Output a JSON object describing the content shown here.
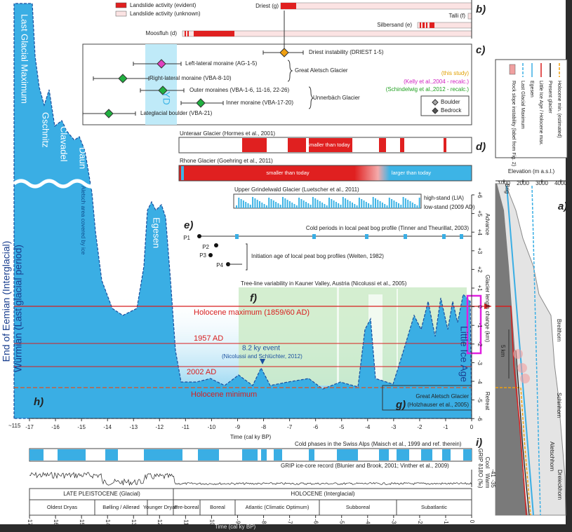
{
  "landslides": {
    "panel": "b)",
    "legend": [
      "Landslide activity (evident)",
      "Landslide activity (unknown)"
    ],
    "sites": [
      "Driest (g)",
      "Talli (f)",
      "Silbersand (e)",
      "Moosfluh (d)"
    ]
  },
  "dating": {
    "panel": "c)",
    "yd": "YD",
    "samples": [
      "Left-lateral moraine (AG-1-5)",
      "Right-lateral moraine (VBA-8-10)",
      "Outer moraines (VBA-1-6, 11-16, 22-26)",
      "Inner moraine (VBA-17-20)",
      "Lateglacial boulder (VBA-21)",
      "Driest instability (DRIEST 1-5)"
    ],
    "glaciers": [
      "Great Aletsch Glacier",
      "Unnerbäch Glacier"
    ],
    "sources": [
      "(this study)",
      "(Kelly et al.,2004 - recalc.)",
      "(Schindelwig et al.,2012 - recalc.)"
    ],
    "symbols": [
      "Boulder",
      "Bedrock"
    ]
  },
  "records": {
    "panel": "d)",
    "unteraar": {
      "title": "Unteraar Glacier (Hormes et al., 2001)",
      "note": "smaller than today"
    },
    "rhone": {
      "title": "Rhone Glacier (Goehring et al., 2011)",
      "smaller": "smaller than today",
      "larger": "larger than today"
    },
    "grindelwald": {
      "title": "Upper Grindelwald Glacier (Luetscher et al., 2011)",
      "high": "high-stand (LIA)",
      "low": "low-stand (2009 AD)"
    }
  },
  "peat": {
    "panel": "e)",
    "cold": "Cold periods in local peat bog profile (Tinner and Theurillat, 2003)",
    "profiles": [
      "P1",
      "P2",
      "P3",
      "P4"
    ],
    "initiation": "Initiation age of local peat bog profiles (Welten, 1982)"
  },
  "treeline": {
    "panel": "f)",
    "title": "Tree-line variability in Kauner Valley, Austria (Nicolussi et al., 2005)"
  },
  "glacier": {
    "panel": "g)",
    "title": "Great Aletsch Glacier",
    "source": "(Holzhauser et al., 2005)",
    "levels": [
      "Holocene maximum (1859/60 AD)",
      "1957 AD",
      "2002 AD",
      "Holocene minimum"
    ],
    "event": "8.2 ky event",
    "event_source": "(Nicolussi and Schlüchter, 2012)",
    "lia": "Little Ice Age",
    "axis_title": "Glacier length change (km)",
    "advance": "Advance",
    "retreat": "Retreat",
    "ticks": [
      "+6",
      "+5",
      "+4",
      "+3",
      "+2",
      "+1",
      "0",
      "-1",
      "-2",
      "-3",
      "-4",
      "-5",
      "-6"
    ]
  },
  "lateglacial": {
    "panel": "h)",
    "stages": [
      "Last Glacial Maximum",
      "Gschnitz",
      "Clavadel",
      "Daun",
      "Egesen"
    ],
    "ice": "Aletsch area covered by ice",
    "wurm": "Würmian (Last glacial period)",
    "eemian": "End of Eemian (Interglacial)",
    "start": "~115"
  },
  "time_axis": {
    "title": "Time (cal ky BP)",
    "ticks": [
      -17,
      -16,
      -15,
      -14,
      -13,
      -12,
      -11,
      -10,
      -9,
      -8,
      -7,
      -6,
      -5,
      -4,
      -3,
      -2,
      -1,
      0
    ]
  },
  "climate": {
    "panel": "i)",
    "cold": "Cold phases in the Swiss Alps (Maisch et al., 1999 and ref. therein)",
    "grip": "GRIP ice-core record (Blunier and Brook, 2001; Vinther et al., 2009)",
    "axis": "GRIP δ18O (‰)",
    "cool": "Cool",
    "warm": "Warm",
    "ticks": [
      -35,
      -41
    ]
  },
  "periods": {
    "epochs": [
      "LATE PLEISTOCENE (Glacial)",
      "HOLOCENE (Interglacial)"
    ],
    "zones": [
      "Oldest Dryas",
      "Bølling / Allerød",
      "Younger Dryas",
      "Pre-boreal",
      "Boreal",
      "Atlantic (Climatic Optimum)",
      "Subboreal",
      "Subatlantic"
    ]
  },
  "bottom_axis": {
    "title": "Time (cal ky BP)",
    "ticks": [
      -17,
      -16,
      -15,
      -14,
      -13,
      -12,
      -11,
      -10,
      -9,
      -8,
      -7,
      -6,
      -5,
      -4,
      -3,
      -2,
      -1,
      0
    ]
  },
  "profile": {
    "panel": "a)",
    "legend": [
      "Holocene min. (estimated)",
      "Present glacier",
      "Little Ice Age / Holocene max.",
      "Egesen",
      "Last Glacial Maximum",
      "Rock slope instability (label from Fig. 2)"
    ],
    "axis_title": "Elevation (m a.s.l.)",
    "ticks": [
      1000,
      2000,
      3000,
      4000
    ],
    "places": [
      "Brig",
      "Breithorn",
      "Schinhorn",
      "Aletschhorn",
      "Dreieckhorn"
    ],
    "scale": "5 km"
  }
}
